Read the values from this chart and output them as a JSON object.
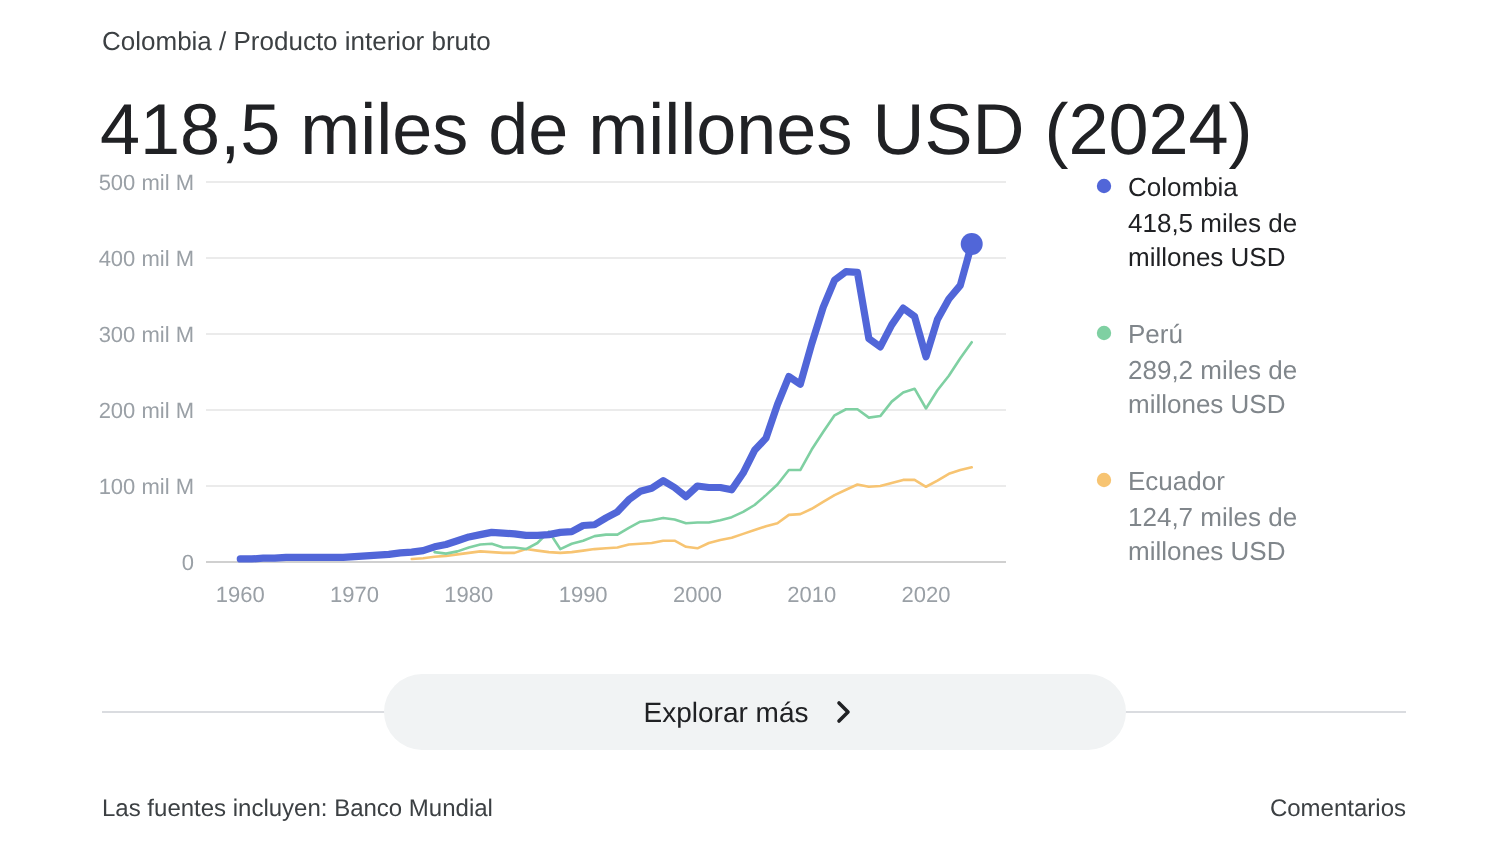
{
  "chart_data": {
    "type": "line",
    "subtitle": "Colombia / Producto interior bruto",
    "title": "418,5 miles de millones USD (2024)",
    "x": [
      1960,
      1961,
      1962,
      1963,
      1964,
      1965,
      1966,
      1967,
      1968,
      1969,
      1970,
      1971,
      1972,
      1973,
      1974,
      1975,
      1976,
      1977,
      1978,
      1979,
      1980,
      1981,
      1982,
      1983,
      1984,
      1985,
      1986,
      1987,
      1988,
      1989,
      1990,
      1991,
      1992,
      1993,
      1994,
      1995,
      1996,
      1997,
      1998,
      1999,
      2000,
      2001,
      2002,
      2003,
      2004,
      2005,
      2006,
      2007,
      2008,
      2009,
      2010,
      2011,
      2012,
      2013,
      2014,
      2015,
      2016,
      2017,
      2018,
      2019,
      2020,
      2021,
      2022,
      2023,
      2024
    ],
    "series": [
      {
        "name": "Colombia",
        "color": "#5166d8",
        "values": [
          4,
          4,
          5,
          5,
          6,
          6,
          6,
          6,
          6,
          6,
          7,
          8,
          9,
          10,
          12,
          13,
          15,
          20,
          23,
          28,
          33,
          36,
          39,
          38,
          37,
          35,
          35,
          36,
          39,
          40,
          48,
          49,
          58,
          66,
          82,
          93,
          97,
          107,
          98,
          86,
          100,
          98,
          98,
          95,
          117,
          147,
          163,
          207,
          244,
          234,
          287,
          335,
          371,
          382,
          381,
          294,
          283,
          312,
          334,
          323,
          270,
          319,
          346,
          364,
          418.5
        ]
      },
      {
        "name": "Perú",
        "color": "#7fd0a2",
        "values": [
          null,
          null,
          null,
          null,
          null,
          null,
          null,
          null,
          null,
          null,
          null,
          null,
          null,
          null,
          null,
          null,
          null,
          13,
          11,
          14,
          19,
          23,
          24,
          19,
          19,
          17,
          25,
          40,
          17,
          24,
          28,
          34,
          36,
          36,
          45,
          53,
          55,
          58,
          56,
          51,
          52,
          52,
          55,
          59,
          66,
          75,
          88,
          102,
          121,
          121,
          148,
          171,
          193,
          201,
          201,
          190,
          192,
          211,
          223,
          228,
          202,
          226,
          245,
          268,
          289.2
        ]
      },
      {
        "name": "Ecuador",
        "color": "#f7c472",
        "values": [
          null,
          null,
          null,
          null,
          null,
          null,
          null,
          null,
          null,
          null,
          null,
          null,
          null,
          null,
          null,
          4,
          5,
          7,
          8,
          10,
          12,
          14,
          13,
          12,
          12,
          17,
          15,
          13,
          12,
          13,
          15,
          17,
          18,
          19,
          23,
          24,
          25,
          28,
          28,
          20,
          18,
          25,
          29,
          32,
          37,
          42,
          47,
          51,
          62,
          63,
          70,
          79,
          88,
          95,
          102,
          99,
          100,
          104,
          108,
          108,
          99,
          107,
          116,
          121,
          124.7
        ]
      },
      {
        "type": "scatter",
        "x": [
          2024
        ],
        "values": [
          418.5
        ],
        "color": "#5166d8"
      }
    ],
    "xlim": [
      1957,
      2027
    ],
    "xticks": [
      1960,
      1970,
      1980,
      1990,
      2000,
      2010,
      2020
    ],
    "ylim": [
      0,
      500
    ],
    "yticks": [
      0,
      {
        "value": 100,
        "label": "100 mil M"
      },
      {
        "value": 200,
        "label": "200 mil M"
      },
      {
        "value": 300,
        "label": "300 mil M"
      },
      {
        "value": 400,
        "label": "400 mil M"
      },
      {
        "value": 500,
        "label": "500 mil M"
      }
    ],
    "grid": "y",
    "legend": "right",
    "annotations": [
      "418,5 miles de millones USD",
      "289,2 miles de millones USD",
      "124,7 miles de millones USD",
      "Explorar más",
      "Las fuentes incluyen: Banco Mundial",
      "Comentarios"
    ]
  }
}
